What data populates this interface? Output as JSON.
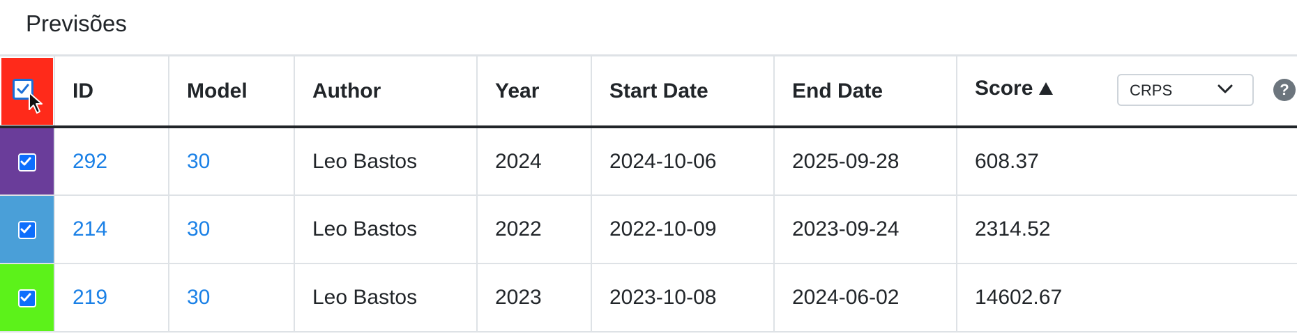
{
  "page": {
    "title": "Previsões"
  },
  "table": {
    "columns": {
      "id": "ID",
      "model": "Model",
      "author": "Author",
      "year": "Year",
      "start_date": "Start Date",
      "end_date": "End Date",
      "score": "Score"
    },
    "metric_select": {
      "value": "CRPS"
    },
    "help_label": "?",
    "rows": [
      {
        "swatch": "#6a3d9a",
        "id": "292",
        "model": "30",
        "author": "Leo Bastos",
        "year": "2024",
        "start_date": "2024-10-06",
        "end_date": "2025-09-28",
        "score": "608.37",
        "checked": true
      },
      {
        "swatch": "#4a9fd8",
        "id": "214",
        "model": "30",
        "author": "Leo Bastos",
        "year": "2022",
        "start_date": "2022-10-09",
        "end_date": "2023-09-24",
        "score": "2314.52",
        "checked": true
      },
      {
        "swatch": "#5cf21a",
        "id": "219",
        "model": "30",
        "author": "Leo Bastos",
        "year": "2023",
        "start_date": "2023-10-08",
        "end_date": "2024-06-02",
        "score": "14602.67",
        "checked": true
      }
    ]
  },
  "icons": {
    "header_checkbox": "checkbox-checked-icon",
    "cursor": "mouse-pointer-icon",
    "sort": "sort-ascending-triangle-icon",
    "select_arrow": "chevron-down-icon",
    "help": "question-circle-icon"
  },
  "colors": {
    "link": "#1a80e6",
    "highlight": "#ff2a1a",
    "checkbox": "#0d6efd"
  }
}
